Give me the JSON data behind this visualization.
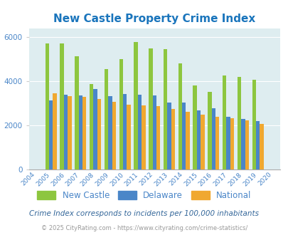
{
  "title": "New Castle Property Crime Index",
  "all_years": [
    2004,
    2005,
    2006,
    2007,
    2008,
    2009,
    2010,
    2011,
    2012,
    2013,
    2014,
    2015,
    2016,
    2017,
    2018,
    2019,
    2020
  ],
  "bar_years": [
    2005,
    2006,
    2007,
    2008,
    2009,
    2010,
    2011,
    2012,
    2013,
    2014,
    2015,
    2016,
    2017,
    2018,
    2019
  ],
  "new_castle": [
    5720,
    5720,
    5130,
    3850,
    4560,
    5000,
    5760,
    5490,
    5450,
    4790,
    3800,
    3520,
    4260,
    4180,
    4060
  ],
  "delaware": [
    3130,
    3380,
    3340,
    3640,
    3330,
    3400,
    3390,
    3360,
    3040,
    3010,
    2660,
    2760,
    2380,
    2280,
    2190
  ],
  "national": [
    3430,
    3310,
    3270,
    3180,
    3060,
    2940,
    2890,
    2860,
    2720,
    2590,
    2480,
    2390,
    2330,
    2220,
    2050
  ],
  "bar_width": 0.26,
  "new_castle_color": "#8dc63f",
  "delaware_color": "#4a86c8",
  "national_color": "#f0a830",
  "bg_color": "#deedf0",
  "ylim": [
    0,
    6400
  ],
  "yticks": [
    0,
    2000,
    4000,
    6000
  ],
  "legend_labels": [
    "New Castle",
    "Delaware",
    "National"
  ],
  "subtitle": "Crime Index corresponds to incidents per 100,000 inhabitants",
  "footer": "© 2025 CityRating.com - https://www.cityrating.com/crime-statistics/",
  "title_color": "#1a75bc",
  "subtitle_color": "#336699",
  "footer_color": "#999999",
  "tick_color": "#4a86c8"
}
